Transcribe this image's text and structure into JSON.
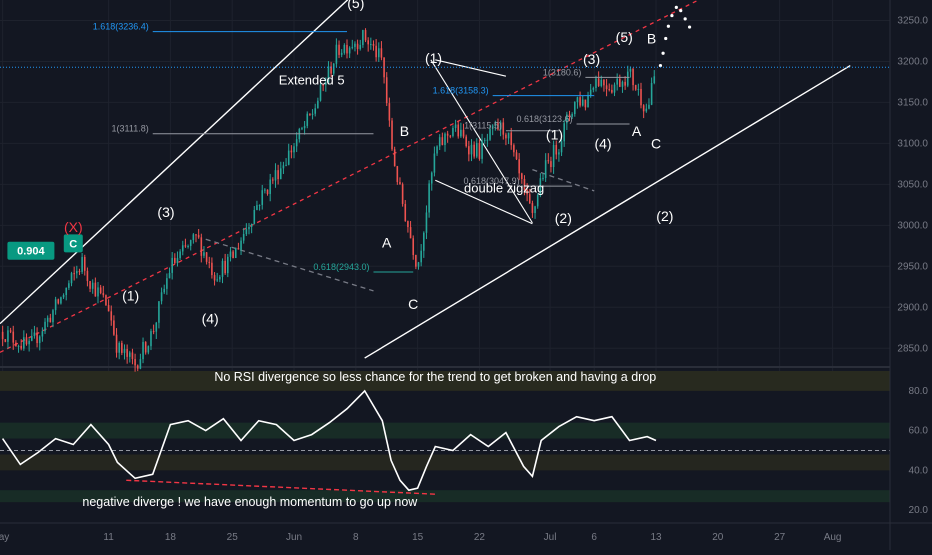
{
  "chart_data": [
    {
      "type": "candlestick",
      "instrument_hint": "price panel",
      "y_axis": {
        "ticks": [
          "3250.0",
          "3200.0",
          "3150.0",
          "3100.0",
          "3050.0",
          "3000.0",
          "2950.0",
          "2900.0",
          "2850.0"
        ],
        "tick_values": [
          3250,
          3200,
          3150,
          3100,
          3050,
          3000,
          2950,
          2900,
          2850
        ],
        "ylim": [
          2832,
          3275
        ],
        "current_price": 3193
      },
      "x_axis": {
        "ticks": [
          {
            "label": "ay",
            "day": -1
          },
          {
            "label": "11",
            "day": 11
          },
          {
            "label": "18",
            "day": 18
          },
          {
            "label": "25",
            "day": 25
          },
          {
            "label": "Jun",
            "day": 32
          },
          {
            "label": "8",
            "day": 39
          },
          {
            "label": "15",
            "day": 46
          },
          {
            "label": "22",
            "day": 53
          },
          {
            "label": "Jul",
            "day": 61
          },
          {
            "label": "6",
            "day": 66
          },
          {
            "label": "13",
            "day": 73
          },
          {
            "label": "20",
            "day": 80
          },
          {
            "label": "27",
            "day": 87
          },
          {
            "label": "Aug",
            "day": 93
          }
        ],
        "xlim": [
          -1.3,
          99.5
        ]
      },
      "path_keypoints": [
        [
          -1,
          2870
        ],
        [
          2,
          2850
        ],
        [
          5,
          2900
        ],
        [
          8,
          2955
        ],
        [
          9,
          2930
        ],
        [
          11,
          2900
        ],
        [
          12,
          2850
        ],
        [
          14,
          2830
        ],
        [
          16,
          2870
        ],
        [
          18,
          2950
        ],
        [
          21,
          2985
        ],
        [
          23,
          2940
        ],
        [
          25,
          2960
        ],
        [
          28,
          3030
        ],
        [
          31,
          3080
        ],
        [
          34,
          3135
        ],
        [
          37,
          3215
        ],
        [
          40,
          3230
        ],
        [
          42,
          3200
        ],
        [
          43,
          3100
        ],
        [
          44,
          3040
        ],
        [
          45,
          2995
        ],
        [
          46,
          2950
        ],
        [
          47,
          3020
        ],
        [
          48,
          3090
        ],
        [
          50,
          3120
        ],
        [
          52,
          3095
        ],
        [
          53,
          3090
        ],
        [
          55,
          3120
        ],
        [
          56,
          3115
        ],
        [
          58,
          3040
        ],
        [
          59,
          3010
        ],
        [
          60,
          3060
        ],
        [
          62,
          3100
        ],
        [
          63,
          3130
        ],
        [
          64,
          3155
        ],
        [
          65,
          3150
        ],
        [
          66,
          3180
        ],
        [
          68,
          3170
        ],
        [
          70,
          3185
        ],
        [
          72,
          3140
        ],
        [
          73,
          3190
        ]
      ],
      "volatility_note": "",
      "annotations_waves": [
        {
          "text": "(5)",
          "day": 39,
          "price": 3265
        },
        {
          "text": "Extended 5",
          "day": 34,
          "price": 3172
        },
        {
          "text": "(3)",
          "day": 17.5,
          "price": 3010
        },
        {
          "text": "(1)",
          "day": 13.5,
          "price": 2908
        },
        {
          "text": "(4)",
          "day": 22.5,
          "price": 2880
        },
        {
          "text": "(X)",
          "day": 7,
          "price": 2992
        },
        {
          "text": "B",
          "day": 44.5,
          "price": 3109
        },
        {
          "text": "A",
          "day": 42.5,
          "price": 2973
        },
        {
          "text": "C",
          "day": 45.5,
          "price": 2898
        },
        {
          "text": "(1)",
          "day": 47.8,
          "price": 3198
        },
        {
          "text": "(1)",
          "day": 61.5,
          "price": 3105
        },
        {
          "text": "(4)",
          "day": 67,
          "price": 3094
        },
        {
          "text": "(3)",
          "day": 65.7,
          "price": 3197
        },
        {
          "text": "(5)",
          "day": 69.4,
          "price": 3224
        },
        {
          "text": "B",
          "day": 72.5,
          "price": 3222
        },
        {
          "text": "A",
          "day": 70.8,
          "price": 3109
        },
        {
          "text": "C",
          "day": 73,
          "price": 3094
        },
        {
          "text": "(2)",
          "day": 62.5,
          "price": 3003
        },
        {
          "text": "(2)",
          "day": 74,
          "price": 3005
        },
        {
          "text": "double zigzag",
          "day": 55.8,
          "price": 3040
        }
      ],
      "fib_levels": [
        {
          "label": "1.618(3236.4)",
          "price": 3236.4,
          "from_day": 16,
          "to_day": 38,
          "color": "#2196f3"
        },
        {
          "label": "1(3111.8)",
          "price": 3111.8,
          "from_day": 16,
          "to_day": 41,
          "color": "#9598a1"
        },
        {
          "label": "0.618(2943.0)",
          "price": 2943.0,
          "from_day": 41,
          "to_day": 45.5,
          "color": "#26a69a"
        },
        {
          "label": "1.618(3158.3)",
          "price": 3158.3,
          "from_day": 54.5,
          "to_day": 66,
          "color": "#2196f3"
        },
        {
          "label": "1(3115.5)",
          "price": 3115.5,
          "from_day": 56,
          "to_day": 62,
          "color": "#9598a1"
        },
        {
          "label": "0.618(3047.9)",
          "price": 3047.9,
          "from_day": 58,
          "to_day": 63.5,
          "color": "#9598a1"
        },
        {
          "label": "1(3180.6)",
          "price": 3180.6,
          "from_day": 65,
          "to_day": 70,
          "color": "#9598a1"
        },
        {
          "label": "0.618(3123.6)",
          "price": 3123.6,
          "from_day": 64,
          "to_day": 70,
          "color": "#9598a1"
        }
      ],
      "badges": [
        {
          "text": "0.904",
          "day": 2.2,
          "price": 2969,
          "color": "#089981"
        },
        {
          "text": "C",
          "day": 7,
          "price": 2978,
          "color": "#089981"
        }
      ],
      "colors": {
        "up": "#26a69a",
        "down": "#ef5350",
        "background": "#131722",
        "grid": "#1e222d",
        "text": "#ffffff",
        "axis_text": "#787b86",
        "price_line": "#2196f3"
      }
    },
    {
      "type": "line",
      "name": "RSI",
      "y_axis": {
        "ticks": [
          "80.0",
          "60.0",
          "40.0",
          "20.0"
        ],
        "tick_values": [
          80,
          60,
          40,
          20
        ],
        "ylim": [
          14,
          90
        ]
      },
      "values_days": [
        -1,
        1,
        3,
        5,
        7,
        9,
        11,
        12,
        14,
        16,
        18,
        20,
        22,
        24,
        26,
        28,
        30,
        32,
        34,
        36,
        38,
        40,
        42,
        43,
        44,
        45,
        46,
        47,
        48,
        50,
        52,
        54,
        56,
        58,
        59,
        60,
        62,
        64,
        66,
        68,
        70,
        72,
        73
      ],
      "values": [
        56,
        43,
        49,
        56,
        53,
        63,
        53,
        44,
        36,
        38,
        63,
        65,
        60,
        66,
        55,
        65,
        63,
        55,
        58,
        64,
        71,
        80,
        65,
        45,
        35,
        30,
        31,
        42,
        52,
        50,
        58,
        52,
        59,
        42,
        37,
        55,
        62,
        67,
        65,
        67,
        55,
        57,
        55
      ],
      "annotations": [
        {
          "text": "No RSI divergence so less chance for the trend to get broken and having a drop",
          "day": 48,
          "value": 85
        },
        {
          "text": "negative diverge ! we have enough momentum to go up now",
          "day": 27,
          "value": 22
        }
      ]
    }
  ]
}
